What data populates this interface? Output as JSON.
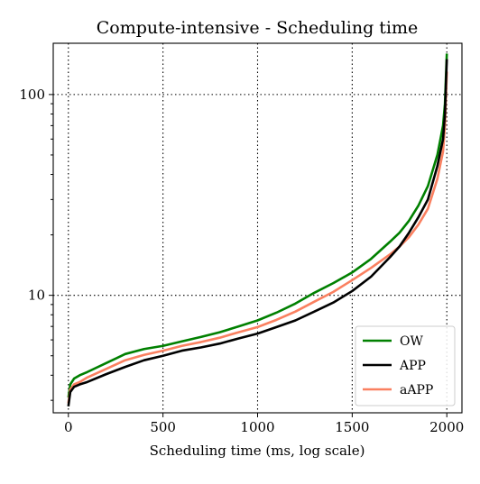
{
  "chart_data": {
    "type": "line",
    "title": "Compute-intensive - Scheduling time",
    "xlabel": "Scheduling time (ms, log scale)",
    "ylabel": "",
    "xlim": [
      -80,
      2080
    ],
    "ylim": [
      2.6,
      180
    ],
    "yscale": "log",
    "grid": true,
    "legend_position": "bottom-right",
    "xticks": [
      {
        "value": 0,
        "label": "0"
      },
      {
        "value": 500,
        "label": "500"
      },
      {
        "value": 1000,
        "label": "1000"
      },
      {
        "value": 1500,
        "label": "1500"
      },
      {
        "value": 2000,
        "label": "2000"
      }
    ],
    "yticks": [
      {
        "value": 10,
        "label": "10"
      },
      {
        "value": 100,
        "label": "100"
      }
    ],
    "series": [
      {
        "name": "OW",
        "color": "#008000",
        "x": [
          0,
          10,
          30,
          60,
          100,
          200,
          300,
          400,
          500,
          600,
          700,
          800,
          900,
          1000,
          1100,
          1200,
          1300,
          1400,
          1500,
          1600,
          1700,
          1750,
          1800,
          1850,
          1900,
          1950,
          1980,
          1990,
          1995,
          2000
        ],
        "y": [
          3.1,
          3.6,
          3.85,
          4.0,
          4.15,
          4.6,
          5.1,
          5.4,
          5.6,
          5.9,
          6.2,
          6.55,
          7.0,
          7.5,
          8.2,
          9.1,
          10.3,
          11.5,
          13.0,
          15.2,
          18.5,
          20.5,
          23.5,
          28,
          35,
          50,
          70,
          90,
          120,
          160
        ]
      },
      {
        "name": "APP",
        "color": "#000000",
        "x": [
          0,
          10,
          30,
          60,
          100,
          200,
          300,
          400,
          500,
          600,
          700,
          800,
          900,
          1000,
          1100,
          1200,
          1300,
          1400,
          1500,
          1600,
          1700,
          1750,
          1800,
          1850,
          1900,
          1950,
          1980,
          1990,
          1995,
          2000
        ],
        "y": [
          2.8,
          3.3,
          3.5,
          3.6,
          3.7,
          4.05,
          4.4,
          4.75,
          5.0,
          5.3,
          5.5,
          5.75,
          6.1,
          6.45,
          6.95,
          7.5,
          8.3,
          9.2,
          10.5,
          12.4,
          15.5,
          17.5,
          20.5,
          24.5,
          30,
          44,
          60,
          80,
          110,
          150
        ]
      },
      {
        "name": "aAPP",
        "color": "#fa8060",
        "x": [
          0,
          10,
          30,
          60,
          100,
          200,
          300,
          400,
          500,
          600,
          700,
          800,
          900,
          1000,
          1100,
          1200,
          1300,
          1400,
          1500,
          1600,
          1700,
          1750,
          1800,
          1850,
          1900,
          1950,
          1980,
          1990,
          1995,
          2000
        ],
        "y": [
          2.9,
          3.4,
          3.6,
          3.7,
          3.9,
          4.3,
          4.75,
          5.05,
          5.3,
          5.6,
          5.85,
          6.15,
          6.55,
          6.95,
          7.55,
          8.3,
          9.3,
          10.4,
          11.9,
          13.7,
          16.0,
          17.5,
          19.5,
          22.5,
          27,
          38,
          52,
          70,
          95,
          130
        ]
      }
    ]
  }
}
